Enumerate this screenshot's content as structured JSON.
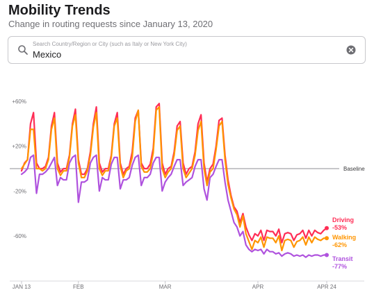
{
  "header": {
    "title": "Mobility Trends",
    "subtitle": "Change in routing requests since January 13, 2020"
  },
  "search": {
    "placeholder": "Search Country/Region or City (such as Italy or New York City)",
    "value": "Mexico",
    "search_icon": "search-icon",
    "clear_icon": "clear-icon"
  },
  "chart_data": {
    "type": "line",
    "x_start": "2020-01-13",
    "x_end": "2020-04-24",
    "x_tick_labels": [
      "JAN 13",
      "FEB",
      "MAR",
      "APR",
      "APR 24"
    ],
    "y_tick_labels": [
      "+60%",
      "+20%",
      "-20%",
      "-60%"
    ],
    "y_ticks": [
      60,
      20,
      -20,
      -60
    ],
    "ylim": [
      -85,
      65
    ],
    "baseline": {
      "value": 0,
      "label": "Baseline"
    },
    "grid": false,
    "series": [
      {
        "name": "Driving",
        "end_label": "-53%",
        "color": "#ff2d55",
        "values": [
          -2,
          5,
          8,
          40,
          50,
          5,
          0,
          0,
          2,
          10,
          38,
          50,
          5,
          -3,
          0,
          0,
          12,
          40,
          53,
          8,
          -5,
          -5,
          0,
          15,
          40,
          55,
          5,
          -3,
          0,
          0,
          12,
          40,
          50,
          5,
          -5,
          0,
          2,
          15,
          45,
          52,
          5,
          0,
          0,
          4,
          18,
          55,
          58,
          5,
          -5,
          0,
          2,
          15,
          38,
          42,
          5,
          -5,
          0,
          2,
          15,
          40,
          48,
          5,
          -12,
          0,
          4,
          20,
          43,
          45,
          12,
          -10,
          -24,
          -34,
          -38,
          -48,
          -40,
          -52,
          -59,
          -64,
          -58,
          -60,
          -55,
          -64,
          -55,
          -56,
          -56,
          -60,
          -54,
          -66,
          -58,
          -57,
          -58,
          -64,
          -59,
          -58,
          -55,
          -62,
          -55,
          -60,
          -55,
          -57,
          -58,
          -55,
          -53
        ]
      },
      {
        "name": "Walking",
        "end_label": "-62%",
        "color": "#ff9500",
        "values": [
          0,
          4,
          8,
          35,
          35,
          0,
          0,
          -2,
          0,
          8,
          35,
          45,
          0,
          -6,
          -2,
          -2,
          10,
          38,
          48,
          5,
          -8,
          -8,
          -2,
          12,
          37,
          50,
          0,
          -6,
          -2,
          -2,
          10,
          38,
          45,
          2,
          -8,
          -2,
          0,
          10,
          42,
          52,
          2,
          -3,
          -3,
          0,
          14,
          52,
          55,
          0,
          -8,
          -3,
          0,
          12,
          34,
          38,
          0,
          -8,
          -4,
          0,
          12,
          34,
          42,
          0,
          -15,
          -3,
          0,
          17,
          38,
          42,
          8,
          -14,
          -26,
          -36,
          -41,
          -52,
          -42,
          -58,
          -65,
          -72,
          -64,
          -66,
          -61,
          -70,
          -61,
          -62,
          -62,
          -66,
          -60,
          -73,
          -64,
          -63,
          -64,
          -70,
          -65,
          -64,
          -61,
          -68,
          -61,
          -66,
          -61,
          -63,
          -64,
          -62,
          -62
        ]
      },
      {
        "name": "Transit",
        "end_label": "-77%",
        "color": "#af52de",
        "values": [
          -5,
          -3,
          0,
          10,
          12,
          -22,
          -5,
          -5,
          -3,
          0,
          5,
          10,
          -15,
          -8,
          -10,
          -10,
          5,
          10,
          12,
          -30,
          -12,
          -12,
          -10,
          5,
          10,
          12,
          -20,
          -8,
          -10,
          -10,
          4,
          10,
          10,
          -18,
          -10,
          -10,
          -8,
          3,
          10,
          12,
          -15,
          -8,
          -8,
          -5,
          5,
          10,
          10,
          -20,
          -12,
          -8,
          -5,
          2,
          8,
          8,
          -15,
          -12,
          -10,
          -8,
          2,
          8,
          8,
          -18,
          -28,
          -8,
          -5,
          2,
          8,
          8,
          -12,
          -28,
          -38,
          -48,
          -52,
          -60,
          -56,
          -68,
          -72,
          -74,
          -72,
          -73,
          -72,
          -76,
          -72,
          -74,
          -74,
          -76,
          -75,
          -78,
          -76,
          -75,
          -76,
          -78,
          -77,
          -78,
          -77,
          -79,
          -77,
          -78,
          -77,
          -77,
          -78,
          -77,
          -77
        ]
      }
    ]
  }
}
